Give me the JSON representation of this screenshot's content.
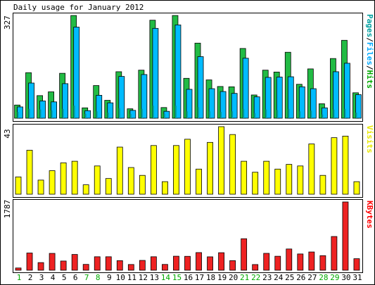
{
  "title": "Daily usage for January 2012",
  "chart_data": [
    {
      "type": "bar",
      "panel": "top",
      "categories": [
        "1",
        "2",
        "3",
        "4",
        "5",
        "6",
        "7",
        "8",
        "9",
        "10",
        "11",
        "12",
        "13",
        "14",
        "15",
        "16",
        "17",
        "18",
        "19",
        "20",
        "21",
        "22",
        "23",
        "24",
        "25",
        "26",
        "27",
        "28",
        "29",
        "30",
        "31"
      ],
      "weekend_days": [
        "1",
        "7",
        "8",
        "14",
        "15",
        "21",
        "22",
        "28",
        "29"
      ],
      "ymax_label": "327",
      "ylim": [
        0,
        327
      ],
      "legend": [
        {
          "label": "Pages",
          "color": "#00a0a0"
        },
        {
          "label": "Files",
          "color": "#00aaff"
        },
        {
          "label": "Hits",
          "color": "#00aa00"
        }
      ],
      "series": [
        {
          "key": "hits",
          "color": "#22bb44",
          "values": [
            42,
            145,
            72,
            84,
            143,
            327,
            33,
            104,
            57,
            148,
            30,
            153,
            312,
            34,
            327,
            127,
            239,
            122,
            101,
            100,
            222,
            74,
            153,
            147,
            210,
            108,
            157,
            46,
            190,
            248,
            81
          ]
        },
        {
          "key": "files",
          "color": "#00bbff",
          "values": [
            36,
            112,
            55,
            52,
            110,
            290,
            24,
            73,
            49,
            133,
            25,
            139,
            286,
            22,
            297,
            92,
            196,
            94,
            85,
            79,
            191,
            68,
            130,
            131,
            132,
            100,
            94,
            33,
            148,
            175,
            75
          ]
        },
        {
          "key": "pages",
          "color": "#00a0a0",
          "values": [
            20,
            30,
            28,
            25,
            30,
            40,
            14,
            22,
            18,
            32,
            14,
            30,
            40,
            14,
            40,
            22,
            35,
            22,
            20,
            22,
            30,
            16,
            28,
            26,
            30,
            22,
            24,
            12,
            28,
            30,
            18
          ]
        }
      ]
    },
    {
      "type": "bar",
      "panel": "middle",
      "ymax_label": "43",
      "ylim": [
        0,
        43
      ],
      "legend": [
        {
          "label": "Visits",
          "color": "#e8e800"
        }
      ],
      "series": [
        {
          "key": "visits",
          "color": "#ffff00",
          "values": [
            11,
            28,
            9,
            15,
            20,
            21,
            6,
            18,
            10,
            30,
            17,
            12,
            31,
            8,
            31,
            35,
            16,
            33,
            43,
            38,
            21,
            14,
            21,
            16,
            19,
            18,
            32,
            12,
            36,
            37,
            8
          ]
        }
      ]
    },
    {
      "type": "bar",
      "panel": "bottom",
      "ymax_label": "1787",
      "ylim": [
        0,
        1787
      ],
      "legend": [
        {
          "label": "KBytes",
          "color": "#ff0000"
        }
      ],
      "series": [
        {
          "key": "kbytes",
          "color": "#ee2222",
          "values": [
            59,
            451,
            200,
            441,
            241,
            413,
            153,
            353,
            353,
            251,
            150,
            257,
            353,
            152,
            367,
            364,
            462,
            351,
            459,
            251,
            825,
            149,
            442,
            366,
            556,
            426,
            478,
            382,
            883,
            1787,
            302
          ]
        }
      ]
    }
  ]
}
